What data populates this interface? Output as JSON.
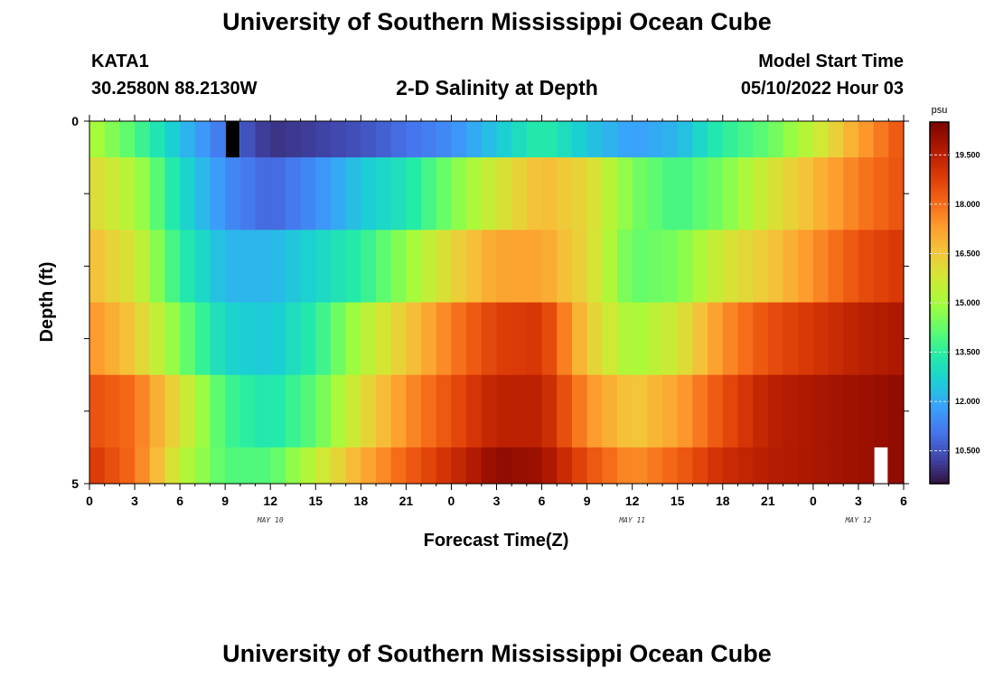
{
  "header": {
    "title": "University of Southern Mississippi Ocean Cube",
    "station": "KATA1",
    "coords": "30.2580N  88.2130W",
    "subtitle": "2-D Salinity at Depth",
    "model_start_label": "Model Start Time",
    "model_start_value": "05/10/2022 Hour 03"
  },
  "footer": {
    "title": "University of Southern Mississippi Ocean Cube"
  },
  "colors": {
    "colormap": [
      "#30123b",
      "#4145ab",
      "#4675ed",
      "#39a2fc",
      "#1bcfd4",
      "#24eca6",
      "#61fc6c",
      "#a4fc3b",
      "#d1e834",
      "#f3c63a",
      "#fe9b2d",
      "#f36315",
      "#d93806",
      "#b11901",
      "#7a0402"
    ],
    "missing_black": "#000000",
    "missing_white": "#ffffff"
  },
  "chart_data": {
    "type": "heatmap",
    "title": "2-D Salinity at Depth",
    "xlabel": "Forecast Time(Z)",
    "ylabel": "Depth (ft)",
    "x_ticks": [
      "0",
      "3",
      "6",
      "9",
      "12",
      "15",
      "18",
      "21",
      "0",
      "3",
      "6",
      "9",
      "12",
      "15",
      "18",
      "21",
      "0",
      "3",
      "6"
    ],
    "x_range_hours": [
      0,
      54
    ],
    "date_labels": [
      {
        "label": "MAY 10",
        "hour": 12
      },
      {
        "label": "MAY 11",
        "hour": 36
      },
      {
        "label": "MAY 12",
        "hour": 51
      }
    ],
    "y_tick_labels": [
      "0",
      "5"
    ],
    "y_range": [
      0,
      5
    ],
    "depth_levels": [
      0,
      1,
      2,
      3,
      4,
      5
    ],
    "colorbar": {
      "unit": "psu",
      "tick_values": [
        "19.500",
        "18.000",
        "16.500",
        "15.000",
        "13.500",
        "12.000",
        "10.500"
      ],
      "vmin": 9.5,
      "vmax": 20.5
    },
    "control_hours": [
      0,
      3,
      6,
      9,
      12,
      15,
      18,
      21,
      24,
      27,
      30,
      33,
      36,
      39,
      42,
      45,
      48,
      51,
      54
    ],
    "salinity_profiles": [
      [
        15.2,
        14.0,
        12.4,
        11.0,
        10.0,
        10.2,
        10.5,
        11.0,
        11.5,
        12.5,
        13.5,
        12.5,
        11.8,
        12.2,
        13.5,
        14.2,
        15.5,
        17.2,
        18.5
      ],
      [
        16.2,
        15.2,
        13.0,
        11.5,
        10.8,
        11.5,
        12.5,
        13.2,
        14.5,
        15.8,
        16.8,
        16.2,
        14.5,
        13.8,
        14.5,
        15.8,
        16.8,
        17.8,
        18.5
      ],
      [
        16.8,
        15.8,
        13.5,
        12.2,
        12.2,
        12.8,
        13.5,
        14.8,
        16.2,
        17.2,
        17.2,
        16.2,
        14.2,
        14.5,
        15.8,
        16.5,
        17.5,
        18.5,
        19.0
      ],
      [
        17.5,
        16.5,
        14.5,
        12.8,
        12.5,
        13.5,
        15.2,
        16.5,
        17.8,
        18.8,
        19.0,
        16.5,
        15.0,
        15.8,
        17.5,
        18.5,
        19.0,
        19.5,
        19.8
      ],
      [
        18.5,
        18.0,
        16.0,
        13.8,
        13.2,
        14.2,
        16.0,
        17.5,
        18.5,
        19.5,
        19.5,
        17.5,
        16.5,
        17.2,
        18.5,
        19.5,
        19.8,
        20.0,
        20.2
      ],
      [
        19.0,
        18.0,
        15.5,
        14.0,
        14.0,
        15.5,
        17.0,
        18.2,
        19.2,
        20.2,
        20.0,
        18.5,
        17.5,
        18.2,
        19.2,
        19.6,
        19.8,
        20.0,
        20.2
      ]
    ],
    "missing_cells": [
      {
        "depth_index": 0,
        "hour": 9,
        "color": "missing_black"
      },
      {
        "depth_index": 5,
        "hour": 52,
        "color": "missing_white"
      }
    ]
  }
}
